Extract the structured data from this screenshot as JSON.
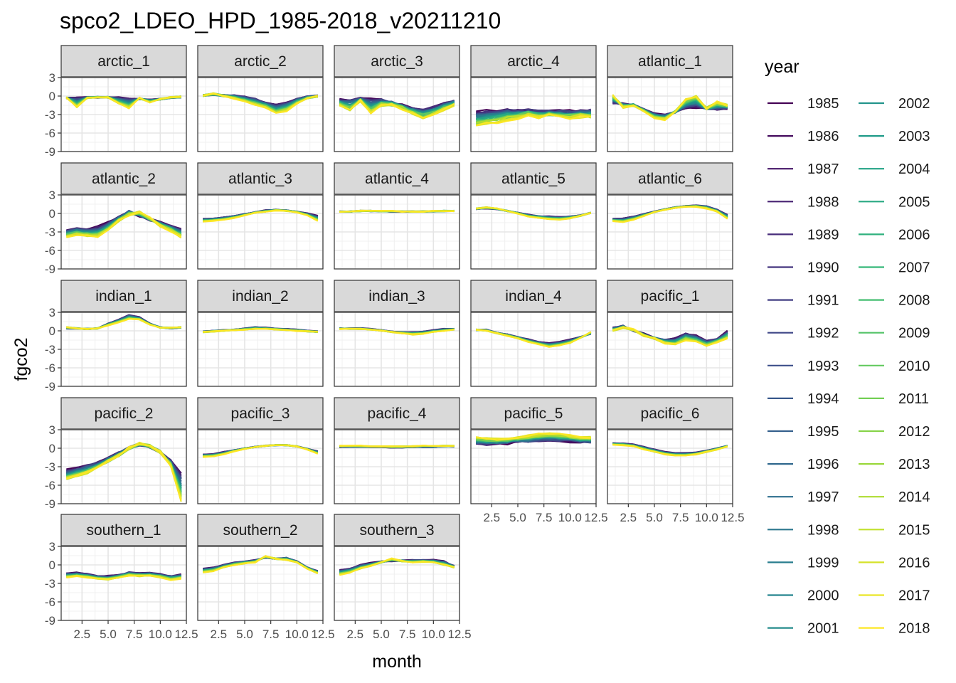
{
  "chart_data": {
    "type": "line",
    "title": "spco2_LDEO_HPD_1985-2018_v20211210",
    "xlabel": "month",
    "ylabel": "fgco2",
    "xlim": [
      0.5,
      12.5
    ],
    "ylim": [
      -9,
      3
    ],
    "x_ticks": [
      2.5,
      5.0,
      7.5,
      10.0,
      12.5
    ],
    "x_tick_labels": [
      "2.5",
      "5.0",
      "7.5",
      "10.0",
      "12.5"
    ],
    "y_ticks": [
      3,
      0,
      -3,
      -6,
      -9
    ],
    "y_tick_labels": [
      "3",
      "0",
      "-3",
      "-6",
      "-9"
    ],
    "grid": true,
    "legend_position": "right",
    "legend_title": "year",
    "legend_columns": 2,
    "color_scale": "viridis",
    "years": [
      1985,
      1986,
      1987,
      1988,
      1989,
      1990,
      1991,
      1992,
      1993,
      1994,
      1995,
      1996,
      1997,
      1998,
      1999,
      2000,
      2001,
      2002,
      2003,
      2004,
      2005,
      2006,
      2007,
      2008,
      2009,
      2010,
      2011,
      2012,
      2013,
      2014,
      2015,
      2016,
      2017,
      2018
    ],
    "x": [
      1,
      2,
      3,
      4,
      5,
      6,
      7,
      8,
      9,
      10,
      11,
      12
    ],
    "facets": [
      {
        "name": "arctic_1",
        "early": [
          -0.3,
          -0.2,
          -0.2,
          -0.2,
          -0.2,
          -0.2,
          -0.3,
          -0.5,
          -0.6,
          -0.5,
          -0.3,
          -0.2
        ],
        "late": [
          -0.2,
          -1.8,
          -0.3,
          -0.2,
          -0.2,
          -1.2,
          -2.0,
          -0.3,
          -1.0,
          -0.5,
          -0.2,
          -0.1
        ]
      },
      {
        "name": "arctic_2",
        "early": [
          0.1,
          0.2,
          0.1,
          0.1,
          -0.1,
          -0.4,
          -1.0,
          -1.4,
          -1.0,
          -0.4,
          -0.1,
          0.0
        ],
        "late": [
          0.1,
          0.4,
          0.0,
          -0.4,
          -0.8,
          -1.4,
          -1.8,
          -2.8,
          -2.4,
          -1.2,
          -0.4,
          0.0
        ]
      },
      {
        "name": "arctic_3",
        "early": [
          -0.6,
          -0.5,
          -0.4,
          -0.4,
          -0.6,
          -1.0,
          -1.5,
          -2.0,
          -2.2,
          -1.8,
          -1.2,
          -0.7
        ],
        "late": [
          -1.5,
          -2.4,
          -0.8,
          -2.8,
          -1.5,
          -1.5,
          -2.0,
          -2.8,
          -3.5,
          -3.0,
          -2.2,
          -1.5
        ]
      },
      {
        "name": "arctic_4",
        "early": [
          -2.6,
          -2.4,
          -2.2,
          -2.2,
          -2.4,
          -2.3,
          -2.4,
          -2.5,
          -2.4,
          -2.5,
          -2.4,
          -2.3
        ],
        "late": [
          -4.8,
          -4.5,
          -4.2,
          -3.8,
          -3.5,
          -3.0,
          -3.5,
          -3.0,
          -3.2,
          -3.5,
          -3.3,
          -3.5
        ]
      },
      {
        "name": "atlantic_1",
        "early": [
          -1.2,
          -1.2,
          -1.4,
          -2.2,
          -2.8,
          -3.0,
          -2.6,
          -2.0,
          -1.8,
          -2.0,
          -2.2,
          -2.0
        ],
        "late": [
          0.2,
          -1.8,
          -1.5,
          -2.5,
          -3.5,
          -3.8,
          -2.5,
          -0.5,
          0.0,
          -2.0,
          -1.0,
          -1.5
        ]
      },
      {
        "name": "atlantic_2",
        "early": [
          -2.8,
          -2.4,
          -2.6,
          -2.2,
          -1.4,
          -0.6,
          0.4,
          -0.4,
          -1.0,
          -1.5,
          -2.0,
          -2.6
        ],
        "late": [
          -3.8,
          -3.4,
          -3.6,
          -3.8,
          -2.8,
          -1.2,
          -0.2,
          0.2,
          -0.8,
          -2.0,
          -2.8,
          -3.8
        ]
      },
      {
        "name": "atlantic_3",
        "early": [
          -0.9,
          -0.8,
          -0.6,
          -0.4,
          -0.1,
          0.2,
          0.5,
          0.6,
          0.5,
          0.3,
          0.0,
          -0.4
        ],
        "late": [
          -1.3,
          -1.2,
          -1.0,
          -0.7,
          -0.3,
          0.1,
          0.3,
          0.5,
          0.4,
          0.2,
          -0.3,
          -1.2
        ]
      },
      {
        "name": "atlantic_4",
        "early": [
          0.3,
          0.3,
          0.4,
          0.4,
          0.3,
          0.3,
          0.3,
          0.3,
          0.3,
          0.3,
          0.4,
          0.4
        ],
        "late": [
          0.3,
          0.3,
          0.4,
          0.4,
          0.4,
          0.4,
          0.3,
          0.3,
          0.3,
          0.4,
          0.4,
          0.4
        ]
      },
      {
        "name": "atlantic_5",
        "early": [
          0.7,
          0.8,
          0.7,
          0.4,
          0.1,
          -0.2,
          -0.4,
          -0.5,
          -0.6,
          -0.5,
          -0.3,
          0.1
        ],
        "late": [
          0.8,
          1.0,
          0.8,
          0.4,
          0.0,
          -0.5,
          -0.7,
          -0.9,
          -1.0,
          -0.8,
          -0.4,
          0.1
        ]
      },
      {
        "name": "atlantic_6",
        "early": [
          -0.9,
          -0.8,
          -0.5,
          -0.1,
          0.3,
          0.7,
          1.0,
          1.2,
          1.3,
          1.2,
          0.6,
          -0.2
        ],
        "late": [
          -1.2,
          -1.4,
          -1.0,
          -0.4,
          0.2,
          0.6,
          0.9,
          1.1,
          1.1,
          0.8,
          0.3,
          -0.9
        ]
      },
      {
        "name": "indian_1",
        "early": [
          0.4,
          0.4,
          0.3,
          0.4,
          1.2,
          1.8,
          2.6,
          2.2,
          1.2,
          0.6,
          0.4,
          0.5
        ],
        "late": [
          0.6,
          0.4,
          0.3,
          0.4,
          0.9,
          1.4,
          1.9,
          1.8,
          1.0,
          0.5,
          0.5,
          0.6
        ]
      },
      {
        "name": "indian_2",
        "early": [
          -0.1,
          0.0,
          0.1,
          0.2,
          0.4,
          0.6,
          0.5,
          0.4,
          0.3,
          0.2,
          0.0,
          -0.1
        ],
        "late": [
          -0.2,
          -0.1,
          0.0,
          0.1,
          0.2,
          0.3,
          0.3,
          0.2,
          0.1,
          0.0,
          -0.1,
          -0.2
        ]
      },
      {
        "name": "indian_3",
        "early": [
          0.4,
          0.4,
          0.4,
          0.3,
          0.1,
          -0.1,
          -0.2,
          -0.2,
          -0.1,
          0.1,
          0.3,
          0.3
        ],
        "late": [
          0.3,
          0.3,
          0.3,
          0.2,
          0.0,
          -0.2,
          -0.4,
          -0.6,
          -0.5,
          -0.2,
          0.0,
          0.2
        ]
      },
      {
        "name": "indian_4",
        "early": [
          0.1,
          0.2,
          -0.3,
          -0.6,
          -1.0,
          -1.4,
          -1.8,
          -2.0,
          -1.8,
          -1.4,
          -1.0,
          -0.5
        ],
        "late": [
          0.2,
          0.0,
          -0.4,
          -0.8,
          -1.2,
          -1.8,
          -2.2,
          -2.6,
          -2.4,
          -2.0,
          -1.2,
          -0.2
        ]
      },
      {
        "name": "pacific_1",
        "early": [
          0.5,
          0.8,
          0.0,
          -0.5,
          -1.2,
          -1.4,
          -1.2,
          -0.4,
          -0.8,
          -1.6,
          -1.4,
          0.0
        ],
        "late": [
          0.0,
          0.5,
          0.2,
          -0.8,
          -1.2,
          -2.0,
          -2.2,
          -1.5,
          -1.8,
          -2.4,
          -1.8,
          -1.2
        ]
      },
      {
        "name": "pacific_2",
        "early": [
          -3.6,
          -3.2,
          -2.8,
          -2.2,
          -1.6,
          -0.8,
          0.0,
          0.6,
          0.2,
          -0.6,
          -2.0,
          -4.0
        ],
        "late": [
          -5.0,
          -4.6,
          -4.0,
          -3.2,
          -2.2,
          -1.2,
          0.0,
          0.8,
          0.4,
          -0.6,
          -2.8,
          -8.6
        ]
      },
      {
        "name": "pacific_3",
        "early": [
          -1.0,
          -0.9,
          -0.6,
          -0.3,
          0.0,
          0.2,
          0.4,
          0.5,
          0.5,
          0.3,
          -0.1,
          -0.5
        ],
        "late": [
          -1.4,
          -1.3,
          -1.0,
          -0.5,
          -0.1,
          0.2,
          0.4,
          0.5,
          0.5,
          0.3,
          -0.2,
          -0.9
        ]
      },
      {
        "name": "pacific_4",
        "early": [
          0.2,
          0.2,
          0.2,
          0.2,
          0.2,
          0.1,
          0.1,
          0.2,
          0.2,
          0.2,
          0.3,
          0.3
        ],
        "late": [
          0.4,
          0.4,
          0.4,
          0.3,
          0.3,
          0.3,
          0.3,
          0.3,
          0.4,
          0.4,
          0.4,
          0.4
        ]
      },
      {
        "name": "pacific_5",
        "early": [
          0.6,
          0.6,
          0.7,
          0.8,
          1.0,
          1.0,
          1.2,
          1.2,
          1.2,
          1.1,
          1.0,
          0.9
        ],
        "late": [
          1.8,
          1.6,
          1.5,
          1.6,
          1.8,
          2.0,
          2.2,
          2.4,
          2.2,
          2.0,
          1.8,
          1.8
        ]
      },
      {
        "name": "pacific_6",
        "early": [
          0.8,
          0.8,
          0.6,
          0.2,
          -0.2,
          -0.6,
          -0.8,
          -0.8,
          -0.7,
          -0.4,
          0.0,
          0.4
        ],
        "late": [
          0.6,
          0.5,
          0.3,
          -0.2,
          -0.6,
          -1.0,
          -1.2,
          -1.2,
          -1.0,
          -0.6,
          -0.2,
          0.3
        ]
      },
      {
        "name": "southern_1",
        "early": [
          -1.4,
          -1.3,
          -1.5,
          -1.8,
          -1.8,
          -1.6,
          -1.2,
          -1.4,
          -1.3,
          -1.5,
          -1.8,
          -1.6
        ],
        "late": [
          -2.0,
          -1.8,
          -2.0,
          -2.3,
          -2.4,
          -2.1,
          -1.7,
          -1.8,
          -1.8,
          -2.0,
          -2.4,
          -2.2
        ]
      },
      {
        "name": "southern_2",
        "early": [
          -0.6,
          -0.4,
          0.0,
          0.4,
          0.6,
          0.8,
          1.2,
          1.0,
          1.2,
          0.6,
          -0.4,
          -1.0
        ],
        "late": [
          -1.2,
          -1.0,
          -0.4,
          0.0,
          0.2,
          0.4,
          1.4,
          1.0,
          0.8,
          0.4,
          -0.6,
          -1.4
        ]
      },
      {
        "name": "southern_3",
        "early": [
          -0.8,
          -0.6,
          0.0,
          0.3,
          0.5,
          0.6,
          0.7,
          0.8,
          0.8,
          0.8,
          0.6,
          -0.2
        ],
        "late": [
          -1.6,
          -1.2,
          -0.6,
          -0.2,
          0.4,
          1.0,
          0.6,
          0.4,
          0.5,
          0.4,
          0.0,
          -0.4
        ]
      }
    ]
  }
}
